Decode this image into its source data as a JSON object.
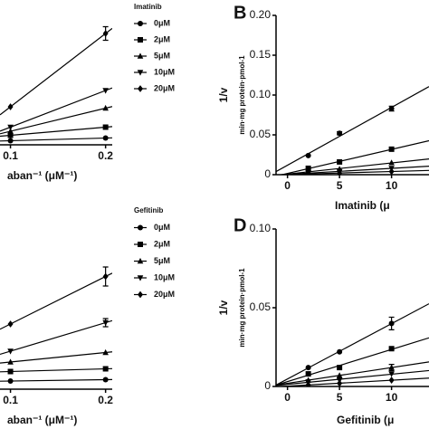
{
  "chart_data": [
    {
      "type": "line",
      "xlabel": "aban⁻¹ (μM⁻¹)",
      "legend_title": "Imatinib",
      "x": [
        0.1,
        0.2
      ],
      "xlim": [
        0.089,
        0.207
      ],
      "xticks": [
        0.1,
        0.2
      ],
      "ylim": [
        0,
        1
      ],
      "series": [
        {
          "name": "0μM",
          "marker": "circle",
          "color": "#000000",
          "values": [
            0.03,
            0.05
          ],
          "errors": [
            null,
            null
          ]
        },
        {
          "name": "2μM",
          "marker": "square",
          "color": "#000000",
          "values": [
            0.07,
            0.13
          ],
          "errors": [
            null,
            null
          ]
        },
        {
          "name": "5μM",
          "marker": "triangle",
          "color": "#000000",
          "values": [
            0.1,
            0.27
          ],
          "errors": [
            null,
            null
          ]
        },
        {
          "name": "10μM",
          "marker": "triangle-down",
          "color": "#000000",
          "values": [
            0.13,
            0.4
          ],
          "errors": [
            null,
            null
          ]
        },
        {
          "name": "20μM",
          "marker": "diamond",
          "color": "#000000",
          "values": [
            0.28,
            0.82
          ],
          "errors": [
            null,
            0.05
          ]
        }
      ]
    },
    {
      "type": "line",
      "letter": "B",
      "ylabel": "1/v",
      "yunit": "min·mg protein·pmol-1",
      "xlabel": "Imatinib (μ",
      "x": [
        2,
        5,
        10
      ],
      "xlim": [
        -1.1,
        13.6
      ],
      "xticks": [
        0,
        5,
        10
      ],
      "ylim": [
        0,
        0.2
      ],
      "yticks": [
        0,
        0.05,
        {
          "value": 0.1,
          "label": "0.10"
        },
        0.15,
        {
          "value": 0.2,
          "label": "0.20"
        }
      ],
      "series": [
        {
          "marker": "circle",
          "color": "#000000",
          "values": [
            0.024,
            0.052,
            0.083
          ],
          "errors": [
            null,
            0.002,
            0.003
          ]
        },
        {
          "marker": "square",
          "color": "#000000",
          "values": [
            0.008,
            0.016,
            0.032
          ],
          "errors": [
            null,
            null,
            null
          ]
        },
        {
          "marker": "triangle",
          "color": "#000000",
          "values": [
            0.004,
            0.007,
            0.015
          ],
          "errors": [
            null,
            null,
            null
          ]
        },
        {
          "marker": "triangle-down",
          "color": "#000000",
          "values": [
            0.002,
            0.004,
            0.008
          ],
          "errors": [
            null,
            null,
            null
          ]
        },
        {
          "marker": "diamond",
          "color": "#000000",
          "values": [
            0.001,
            0.002,
            0.004
          ],
          "errors": [
            null,
            null,
            null
          ]
        }
      ]
    },
    {
      "type": "line",
      "xlabel": "aban⁻¹ (μM⁻¹)",
      "legend_title": "Gefitinib",
      "x": [
        0.1,
        0.2
      ],
      "xlim": [
        0.089,
        0.207
      ],
      "xticks": [
        0.1,
        0.2
      ],
      "ylim": [
        0,
        1
      ],
      "series": [
        {
          "name": "0μM",
          "marker": "circle",
          "color": "#000000",
          "values": [
            0.06,
            0.07
          ],
          "errors": [
            null,
            null
          ]
        },
        {
          "name": "2μM",
          "marker": "square",
          "color": "#000000",
          "values": [
            0.13,
            0.15
          ],
          "errors": [
            null,
            null
          ]
        },
        {
          "name": "5μM",
          "marker": "triangle",
          "color": "#000000",
          "values": [
            0.2,
            0.27
          ],
          "errors": [
            null,
            null
          ]
        },
        {
          "name": "10μM",
          "marker": "triangle-down",
          "color": "#000000",
          "values": [
            0.28,
            0.49
          ],
          "errors": [
            null,
            0.03
          ]
        },
        {
          "name": "20μM",
          "marker": "diamond",
          "color": "#000000",
          "values": [
            0.48,
            0.83
          ],
          "errors": [
            null,
            0.07
          ]
        }
      ]
    },
    {
      "type": "line",
      "letter": "D",
      "ylabel": "1/v",
      "yunit": "min·mg protein·pmol-1",
      "xlabel": "Gefitinib (μ",
      "x": [
        2,
        5,
        10
      ],
      "xlim": [
        -1.1,
        13.6
      ],
      "xticks": [
        0,
        5,
        10
      ],
      "ylim": [
        0,
        0.1
      ],
      "yticks": [
        0,
        0.05,
        {
          "value": 0.1,
          "label": "0.10"
        }
      ],
      "series": [
        {
          "marker": "circle",
          "color": "#000000",
          "values": [
            0.012,
            0.022,
            0.04
          ],
          "errors": [
            null,
            null,
            0.004
          ]
        },
        {
          "marker": "square",
          "color": "#000000",
          "values": [
            0.008,
            0.012,
            0.024
          ],
          "errors": [
            null,
            null,
            null
          ]
        },
        {
          "marker": "triangle",
          "color": "#000000",
          "values": [
            0.004,
            0.007,
            0.012
          ],
          "errors": [
            null,
            null,
            0.002
          ]
        },
        {
          "marker": "triangle-down",
          "color": "#000000",
          "values": [
            0.003,
            0.004,
            0.008
          ],
          "errors": [
            null,
            null,
            null
          ]
        },
        {
          "marker": "diamond",
          "color": "#000000",
          "values": [
            0.001,
            0.002,
            0.004
          ],
          "errors": [
            null,
            null,
            null
          ]
        }
      ]
    }
  ]
}
